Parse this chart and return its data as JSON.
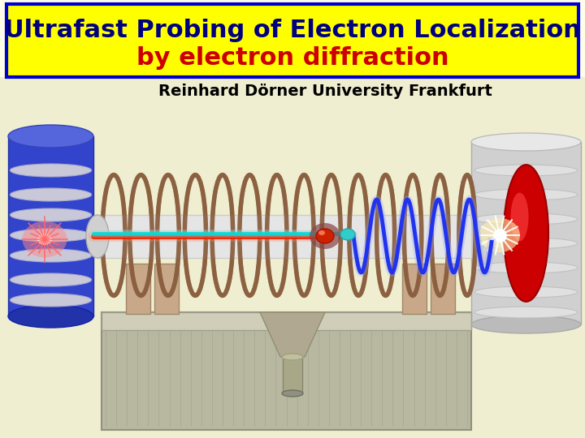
{
  "title_line1": "Ultrafast Probing of Electron Localization",
  "title_line2": "by electron diffraction",
  "subtitle": "Reinhard Dörner University Frankfurt",
  "title_bg_color": "#FFFF00",
  "title_border_color": "#0000CC",
  "title_line1_color": "#000080",
  "title_line2_color": "#CC0000",
  "subtitle_color": "#000000",
  "bg_color": "#FEFEE8",
  "apparatus_bg": "#F0EED0",
  "title_line1_fontsize": 22,
  "title_line2_fontsize": 22,
  "subtitle_fontsize": 14,
  "fig_width": 7.2,
  "fig_height": 5.4,
  "dpi": 100
}
